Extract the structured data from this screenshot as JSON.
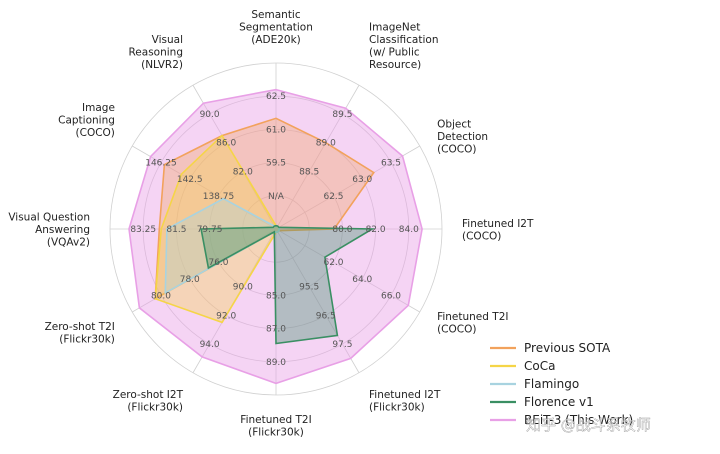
{
  "chart_data": {
    "type": "radar",
    "axes": [
      {
        "label": [
          "Semantic",
          "Segmentation",
          "(ADE20k)"
        ],
        "ticks": [
          "N/A",
          "59.5",
          "61.0",
          "62.5"
        ]
      },
      {
        "label": [
          "ImageNet",
          "Classification",
          "(w/ Public",
          "Resource)"
        ],
        "ticks": [
          "88.5",
          "89.0",
          "89.5"
        ]
      },
      {
        "label": [
          "Object",
          "Detection",
          "(COCO)"
        ],
        "ticks": [
          "62.5",
          "63.0",
          "63.5"
        ]
      },
      {
        "label": [
          "Finetuned I2T",
          "(COCO)"
        ],
        "ticks": [
          "80.0",
          "82.0",
          "84.0"
        ]
      },
      {
        "label": [
          "Finetuned T2I",
          "(COCO)"
        ],
        "ticks": [
          "62.0",
          "64.0",
          "66.0"
        ]
      },
      {
        "label": [
          "Finetuned I2T",
          "(Flickr30k)"
        ],
        "ticks": [
          "95.5",
          "96.5",
          "97.5"
        ]
      },
      {
        "label": [
          "Finetuned T2I",
          "(Flickr30k)"
        ],
        "ticks": [
          "85.0",
          "87.0",
          "89.0"
        ]
      },
      {
        "label": [
          "Zero-shot I2T",
          "(Flickr30k)"
        ],
        "ticks": [
          "90.0",
          "92.0",
          "94.0"
        ]
      },
      {
        "label": [
          "Zero-shot T2I",
          "(Flickr30k)"
        ],
        "ticks": [
          "76.0",
          "78.0",
          "80.0"
        ]
      },
      {
        "label": [
          "Visual Question",
          "Answering",
          "(VQAv2)"
        ],
        "ticks": [
          "79.75",
          "81.5",
          "83.25"
        ]
      },
      {
        "label": [
          "Image",
          "Captioning",
          "(COCO)"
        ],
        "ticks": [
          "138.75",
          "142.5",
          "146.25"
        ]
      },
      {
        "label": [
          "Visual",
          "Reasoning",
          "(NLVR2)"
        ],
        "ticks": [
          "82.0",
          "86.0",
          "90.0"
        ]
      }
    ],
    "series": [
      {
        "name": "Previous SOTA",
        "color": "#f2a25c",
        "values": [
          61.5,
          89.0,
          63.2,
          79.5,
          null,
          null,
          null,
          null,
          80.4,
          82.4,
          145.8,
          87.0
        ]
      },
      {
        "name": "CoCa",
        "color": "#f5d547",
        "values": [
          null,
          null,
          null,
          null,
          null,
          null,
          null,
          92.5,
          80.4,
          82.3,
          143.6,
          87.0
        ]
      },
      {
        "name": "Flamingo",
        "color": "#a8d3e0",
        "values": [
          null,
          null,
          null,
          null,
          null,
          null,
          null,
          null,
          79.7,
          82.0,
          138.1,
          null
        ]
      },
      {
        "name": "Florence v1",
        "color": "#3a8f63",
        "values": [
          null,
          null,
          null,
          81.8,
          61.4,
          97.2,
          87.9,
          null,
          76.7,
          80.2,
          null,
          null
        ]
      },
      {
        "name": "BEiT-3 (This Work)",
        "color": "#e8a0e6",
        "values": [
          62.8,
          89.6,
          63.7,
          84.8,
          67.2,
          98.0,
          90.3,
          94.9,
          81.5,
          84.0,
          147.6,
          91.5
        ]
      }
    ],
    "legend_position": "bottom-right",
    "grid": true
  },
  "watermark": "知乎 @战斗系牧师"
}
